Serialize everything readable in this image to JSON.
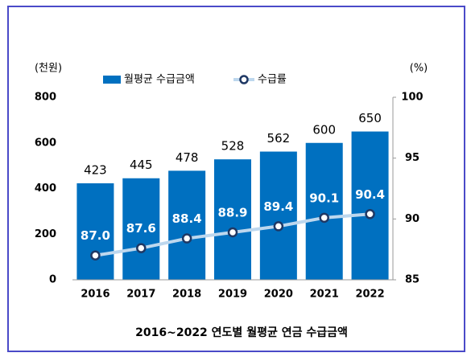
{
  "chart_data": {
    "type": "combo",
    "title": "2016~2022 연도별 월평균 연금 수급금액",
    "y_label": "(천원)",
    "y2_label": "(%)",
    "categories": [
      "2016",
      "2017",
      "2018",
      "2019",
      "2020",
      "2021",
      "2022"
    ],
    "series": [
      {
        "name": "월평균 수급금액",
        "type": "bar",
        "color": "#0070c0",
        "values": [
          423,
          445,
          478,
          528,
          562,
          600,
          650
        ]
      },
      {
        "name": "수급률",
        "type": "line",
        "axis": "y2",
        "color": "#bdd7ee",
        "marker_color": "#1f3864",
        "values": [
          87,
          87.6,
          88.4,
          88.9,
          89.4,
          90.1,
          90.4
        ],
        "value_labels": [
          "87.0",
          "87.6",
          "88.4",
          "88.9",
          "89.4",
          "90.1",
          "90.4"
        ]
      }
    ],
    "ylim": [
      0,
      800
    ],
    "yticks": [
      0,
      200,
      400,
      600,
      800
    ],
    "y2lim": [
      85,
      100
    ],
    "y2ticks": [
      85,
      90,
      95,
      100
    ],
    "grid": false
  }
}
